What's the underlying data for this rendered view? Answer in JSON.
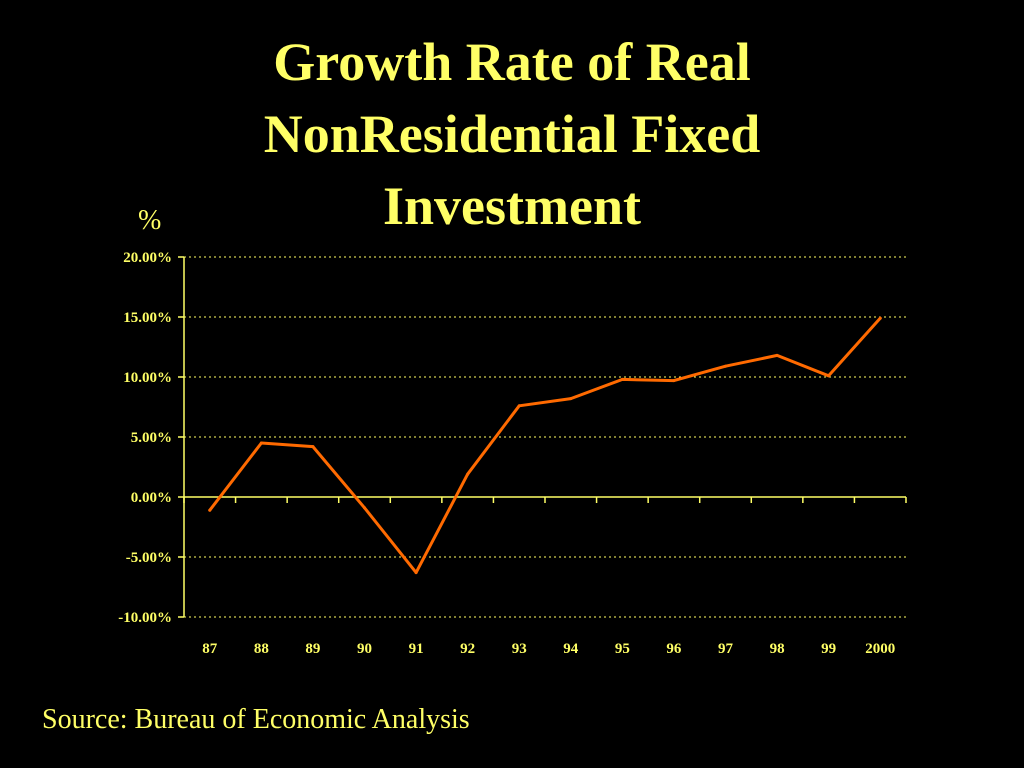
{
  "title_lines": [
    "Growth Rate of Real",
    "NonResidential Fixed",
    "Investment"
  ],
  "source": "Source: Bureau of Economic Analysis",
  "colors": {
    "background": "#000000",
    "text": "#ffff66",
    "axis": "#ffff66",
    "grid": "#ffff66",
    "line": "#ff6a00"
  },
  "chart_data": {
    "type": "line",
    "title": "Growth Rate of Real NonResidential Fixed Investment",
    "ylabel": "%",
    "xlabel": "",
    "categories": [
      "87",
      "88",
      "89",
      "90",
      "91",
      "92",
      "93",
      "94",
      "95",
      "96",
      "97",
      "98",
      "99",
      "2000"
    ],
    "series": [
      {
        "values": [
          -1.1,
          4.5,
          4.2,
          -0.9,
          -6.3,
          1.9,
          7.6,
          8.2,
          9.8,
          9.7,
          10.9,
          11.8,
          10.1,
          14.9
        ]
      }
    ],
    "ylim": [
      -10,
      20
    ],
    "yticks": [
      20,
      15,
      10,
      5,
      0,
      -5,
      -10
    ],
    "ytick_labels": [
      "20.00%",
      "15.00%",
      "10.00%",
      "5.00%",
      "0.00%",
      "-5.00%",
      "-10.00%"
    ],
    "grid": "horizontal dotted",
    "legend": "none"
  }
}
